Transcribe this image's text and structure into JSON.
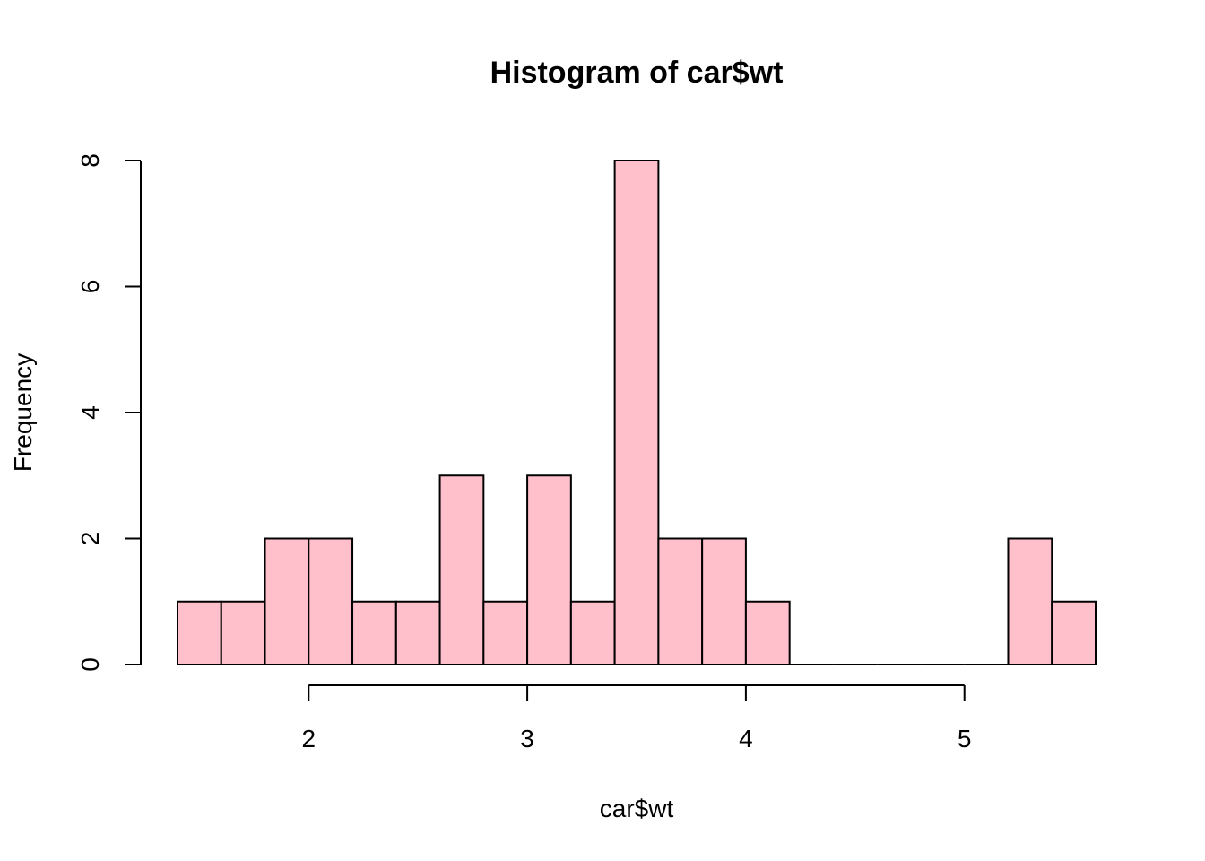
{
  "chart_data": {
    "type": "bar",
    "title": "Histogram of car$wt",
    "xlabel": "car$wt",
    "ylabel": "Frequency",
    "bin_edges": [
      1.4,
      1.6,
      1.8,
      2.0,
      2.2,
      2.4,
      2.6,
      2.8,
      3.0,
      3.2,
      3.4,
      3.6,
      3.8,
      4.0,
      4.2,
      4.4,
      4.6,
      4.8,
      5.0,
      5.2,
      5.4,
      5.6
    ],
    "values": [
      1,
      1,
      2,
      2,
      1,
      1,
      3,
      1,
      3,
      1,
      8,
      2,
      2,
      1,
      0,
      0,
      0,
      0,
      0,
      2,
      1
    ],
    "x_ticks": [
      2,
      3,
      4,
      5
    ],
    "x_tick_labels": [
      "2",
      "3",
      "4",
      "5"
    ],
    "y_ticks": [
      0,
      2,
      4,
      6,
      8
    ],
    "y_tick_labels": [
      "0",
      "2",
      "4",
      "6",
      "8"
    ],
    "xlim": [
      1.4,
      5.6
    ],
    "ylim": [
      0,
      8
    ],
    "bar_color": "#FFC0CB",
    "grid": false,
    "legend": "none"
  }
}
